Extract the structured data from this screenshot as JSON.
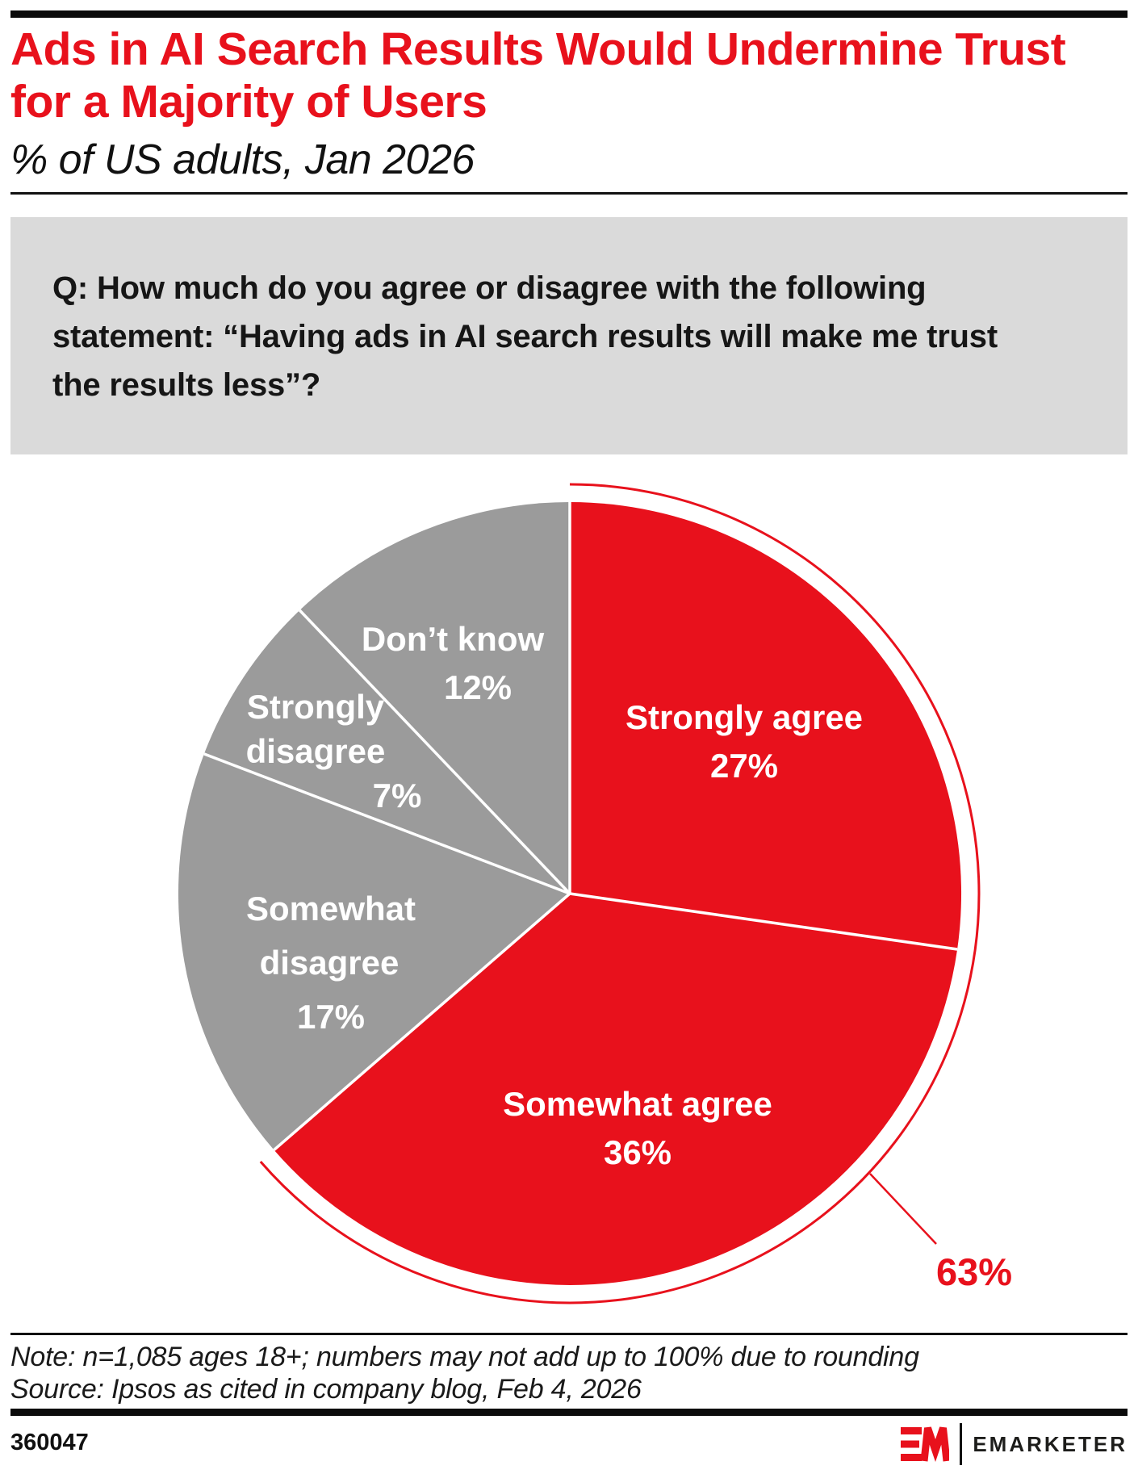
{
  "header": {
    "title_line1": "Ads in AI Search Results Would Undermine Trust",
    "title_line2": "for a Majority of Users",
    "subtitle": "% of US adults, Jan 2026"
  },
  "question": {
    "lines": [
      "Q: How much do you agree or disagree with the following",
      "statement: “Having ads in AI search results will make me trust",
      "the results less”?"
    ]
  },
  "colors": {
    "red": "#e8111c",
    "gray": "#9b9b9b",
    "boxgray": "#dadada",
    "black": "#0b0b0b",
    "white": "#ffffff"
  },
  "chart_data": {
    "type": "pie",
    "title": "",
    "start_angle_deg": 0,
    "direction": "clockwise",
    "slices": [
      {
        "label": "Strongly agree",
        "value": 27,
        "value_label": "27%",
        "color": "red"
      },
      {
        "label": "Somewhat agree",
        "value": 36,
        "value_label": "36%",
        "color": "red"
      },
      {
        "label": "Somewhat disagree",
        "value": 17,
        "value_label": "17%",
        "color": "gray"
      },
      {
        "label": "Strongly disagree",
        "value": 7,
        "value_label": "7%",
        "color": "gray"
      },
      {
        "label": "Don’t know",
        "value": 12,
        "value_label": "12%",
        "color": "gray"
      }
    ],
    "callout_label": "63%",
    "callout_slice_indexes": [
      0,
      1
    ],
    "legend_position": "none",
    "grid": false
  },
  "footer": {
    "note": "Note: n=1,085 ages 18+; numbers may not add up to 100% due to rounding",
    "source": "Source: Ipsos as cited in company blog, Feb 4, 2026",
    "chart_id": "360047"
  },
  "logo": {
    "wordmark": "EMARKETER"
  }
}
